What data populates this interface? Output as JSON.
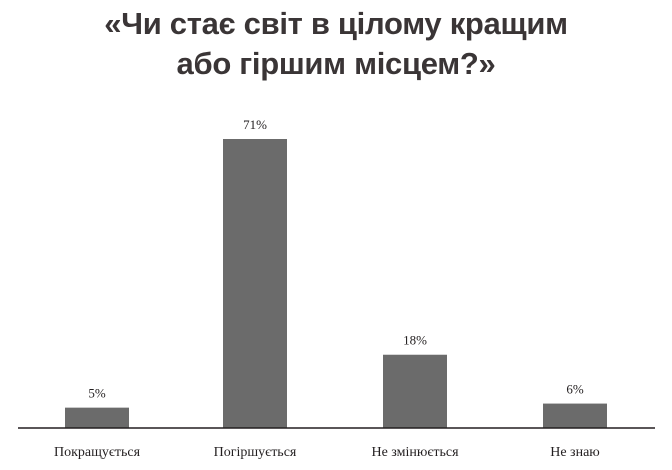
{
  "chart_data": {
    "type": "bar",
    "title_lines": [
      "«Чи стає світ в цілому кращим",
      "або гіршим місцем?»"
    ],
    "categories": [
      "Покращується",
      "Погіршується",
      "Не змінюється",
      "Не знаю"
    ],
    "values": [
      5,
      71,
      18,
      6
    ],
    "value_labels": [
      "5%",
      "71%",
      "18%",
      "6%"
    ],
    "unit": "%",
    "ylim": [
      0,
      71
    ],
    "grid": false,
    "legend": "none",
    "bar_color": "#6b6b6b",
    "axis_color": "#231f20"
  }
}
